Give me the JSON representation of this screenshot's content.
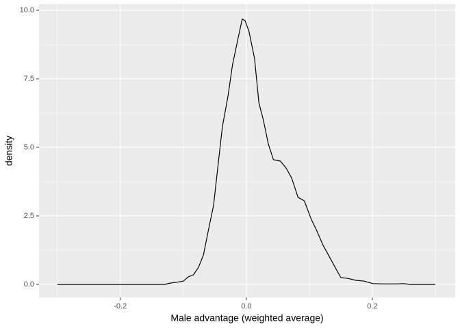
{
  "chart_data": {
    "type": "line",
    "x_label": "Male advantage (weighted average)",
    "y_label": "density",
    "x": [
      -0.3,
      -0.13,
      -0.12,
      -0.111,
      -0.1,
      -0.092,
      -0.084,
      -0.076,
      -0.068,
      -0.06,
      -0.052,
      -0.046,
      -0.038,
      -0.029,
      -0.022,
      -0.014,
      -0.0065,
      -0.002,
      0.004,
      0.013,
      0.02,
      0.027,
      0.035,
      0.043,
      0.054,
      0.063,
      0.072,
      0.082,
      0.092,
      0.103,
      0.111,
      0.122,
      0.134,
      0.141,
      0.15,
      0.161,
      0.174,
      0.187,
      0.201,
      0.217,
      0.239,
      0.25,
      0.261,
      0.3
    ],
    "series": [
      {
        "color": "#000000",
        "values": [
          0,
          0,
          0.05,
          0.08,
          0.12,
          0.28,
          0.35,
          0.62,
          1.08,
          2.0,
          2.88,
          4.12,
          5.75,
          6.88,
          8.0,
          8.88,
          9.68,
          9.62,
          9.25,
          8.25,
          6.62,
          6.0,
          5.12,
          4.55,
          4.5,
          4.25,
          3.88,
          3.18,
          3.05,
          2.38,
          2.0,
          1.42,
          0.92,
          0.62,
          0.25,
          0.22,
          0.15,
          0.12,
          0.03,
          0.02,
          0.02,
          0.03,
          0,
          0
        ]
      }
    ],
    "xlim": [
      -0.329,
      0.3315
    ],
    "ylim": [
      -0.475,
      10.225
    ],
    "xticks": [
      {
        "value": -0.2,
        "label": "-0.2"
      },
      {
        "value": 0,
        "label": "0.0"
      },
      {
        "value": 0.2,
        "label": "0.2"
      }
    ],
    "yticks": [
      {
        "value": 0,
        "label": "0.0"
      },
      {
        "value": 2.5,
        "label": "2.5"
      },
      {
        "value": 5,
        "label": "5.0"
      },
      {
        "value": 7.5,
        "label": "7.5"
      },
      {
        "value": 10,
        "label": "10.0"
      }
    ],
    "x_minor_breaks": [
      -0.3,
      -0.1,
      0.1,
      0.3
    ],
    "y_minor_breaks": [
      1.25,
      3.75,
      6.25,
      8.75
    ],
    "grid": true,
    "panel_color": "#ebebeb"
  }
}
